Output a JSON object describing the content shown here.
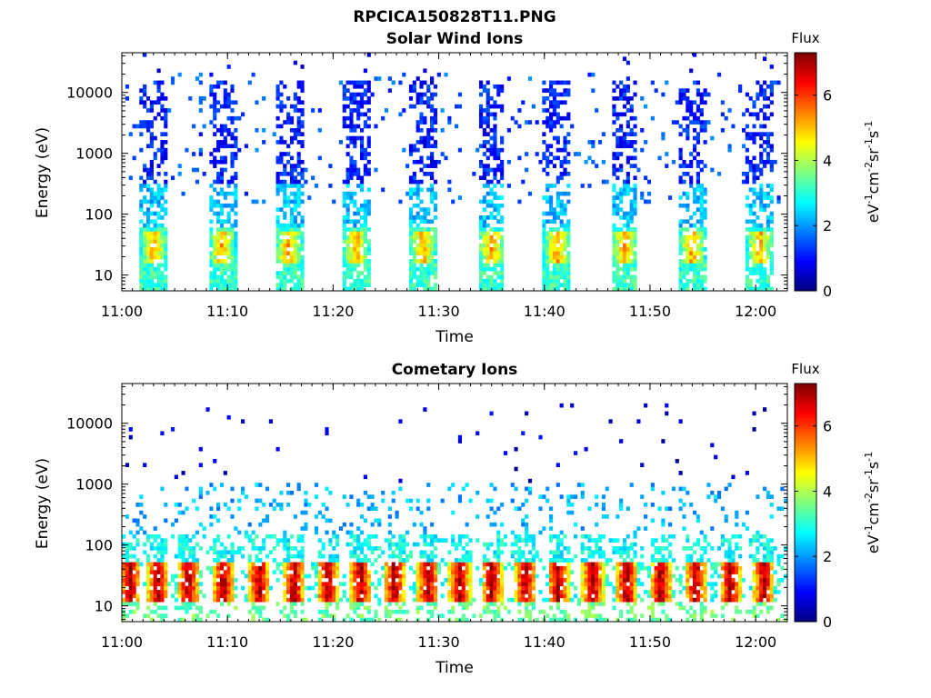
{
  "figure_title": "RPCICA150828T11.PNG",
  "chart_data": [
    {
      "type": "heatmap",
      "title": "Solar Wind Ions",
      "xlabel": "Time",
      "ylabel": "Energy (eV)",
      "x_ticks": [
        "11:00",
        "11:10",
        "11:20",
        "11:30",
        "11:40",
        "11:50",
        "12:00"
      ],
      "y_ticks": [
        "10",
        "100",
        "1000",
        "10000"
      ],
      "yscale": "log",
      "xlim": [
        "11:00",
        "12:03"
      ],
      "ylim": [
        5.5,
        45000
      ],
      "colorbar": {
        "title": "Flux",
        "units": "eV-1cm-2sr-1s-1",
        "ticks": [
          "0",
          "2",
          "4",
          "6"
        ],
        "range": [
          0,
          7.3
        ],
        "colormap": "jet"
      },
      "pattern": {
        "description_values": "periodic bursts",
        "burst_centers_min": [
          3.0,
          9.5,
          15.8,
          22.2,
          28.5,
          35.0,
          41.2,
          47.6,
          54.0,
          60.4
        ],
        "burst_peak_energy_eV": 30,
        "burst_peak_flux": 5.5,
        "background_flux": 2.0
      }
    },
    {
      "type": "heatmap",
      "title": "Cometary Ions",
      "xlabel": "Time",
      "ylabel": "Energy (eV)",
      "x_ticks": [
        "11:00",
        "11:10",
        "11:20",
        "11:30",
        "11:40",
        "11:50",
        "12:00"
      ],
      "y_ticks": [
        "10",
        "100",
        "1000",
        "10000"
      ],
      "yscale": "log",
      "xlim": [
        "11:00",
        "12:03"
      ],
      "ylim": [
        5.5,
        45000
      ],
      "colorbar": {
        "title": "Flux",
        "units": "eV-1cm-2sr-1s-1",
        "ticks": [
          "0",
          "2",
          "4",
          "6"
        ],
        "range": [
          0,
          7.3
        ],
        "colormap": "jet"
      },
      "pattern": {
        "burst_centers_min": [
          0.8,
          3.4,
          6.3,
          9.6,
          13.0,
          16.3,
          19.5,
          22.6,
          25.8,
          29.0,
          32.0,
          35.0,
          38.2,
          41.3,
          44.6,
          47.8,
          51.0,
          54.3,
          57.6,
          60.8
        ],
        "burst_peak_energy_eV": 30,
        "burst_peak_flux": 7.0,
        "background_flux": 2.5
      }
    }
  ]
}
